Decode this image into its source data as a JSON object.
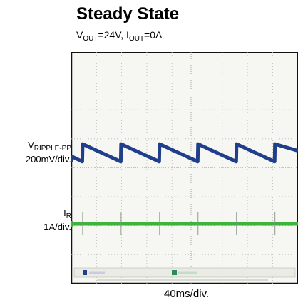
{
  "header": {
    "title": "Steady State",
    "cond_v": "V",
    "cond_v_sub": "OUT",
    "cond_v_val": "=24V, I",
    "cond_i_sub": "OUT",
    "cond_i_val": "=0A"
  },
  "labels": {
    "ripple_main": "V",
    "ripple_sub": "RIPPLE-PP",
    "ripple_scale": "200mV/div.",
    "ir_main": "I",
    "ir_sub": "R",
    "ir_scale": "1A/div."
  },
  "chart_data": {
    "type": "line",
    "title": "Steady State",
    "subtitle": "VOUT=24V, IOUT=0A",
    "xlabel": "40ms/div.",
    "grid": true,
    "x_unit": "ms",
    "series": [
      {
        "name": "VRIPPLE-PP",
        "scale": "200mV/div.",
        "color": "#1f3f8c",
        "x": [
          0,
          16,
          16.5,
          72,
          72.5,
          128,
          128.5,
          184,
          184.5,
          240,
          240.5,
          296,
          296.5,
          330
        ],
        "values": [
          0.1,
          -0.1,
          0.55,
          -0.1,
          0.55,
          -0.1,
          0.55,
          -0.1,
          0.55,
          -0.1,
          0.55,
          -0.1,
          0.55,
          0.3
        ]
      },
      {
        "name": "IR",
        "scale": "1A/div.",
        "color": "#3cb43c",
        "x": [
          0,
          330
        ],
        "values": [
          0,
          0
        ]
      }
    ],
    "status_bar": {
      "ch1_color": "#1f3f8c",
      "ch2_color": "#2e8b57"
    }
  }
}
